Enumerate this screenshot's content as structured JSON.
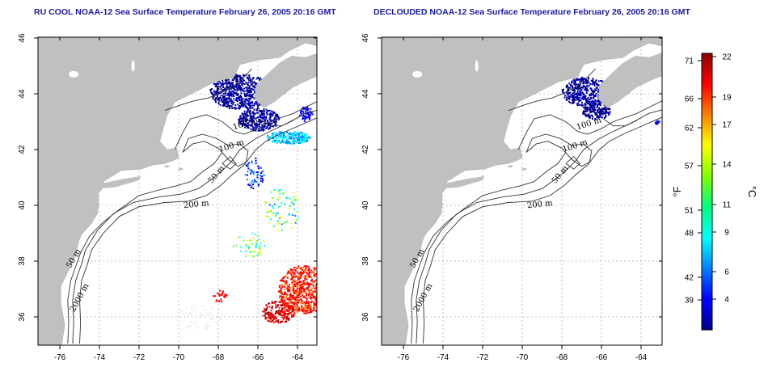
{
  "panels": [
    {
      "id": "left",
      "title": "RU COOL NOAA-12 Sea Surface Temperature February 26, 2005 20:16 GMT",
      "contour_labels": [
        "100 m",
        "100 m",
        "50 m",
        "200 m",
        "50 m",
        "2000 m"
      ]
    },
    {
      "id": "right",
      "title": "DECLOUDED NOAA-12 Sea Surface Temperature February 26, 2005 20:16 GMT",
      "contour_labels": [
        "100 m",
        "100 m",
        "50 m",
        "200 m",
        "50 m",
        "2000 m"
      ]
    }
  ],
  "map": {
    "lon_ticks": [
      "-76",
      "-74",
      "-72",
      "-70",
      "-68",
      "-66",
      "-64"
    ],
    "lat_ticks": [
      "46",
      "44",
      "42",
      "40",
      "38",
      "36"
    ],
    "lon_range": [
      -77.5,
      -62.8
    ],
    "lat_range": [
      35,
      46
    ],
    "grid": true,
    "land_color": "#c0c0c0",
    "ocean_color": "#ffffff"
  },
  "colorbar": {
    "f_labels": [
      "71",
      "66",
      "62",
      "57",
      "51",
      "48",
      "42",
      "39"
    ],
    "c_labels": [
      "22",
      "19",
      "17",
      "14",
      "11",
      "9",
      "6",
      "4"
    ],
    "f_unit": "°F",
    "c_unit": "°C",
    "colors": [
      "#00008b",
      "#0000ff",
      "#0080ff",
      "#00ffff",
      "#00ff80",
      "#80ff00",
      "#ffff00",
      "#ff8000",
      "#ff0000",
      "#8b0000"
    ]
  }
}
